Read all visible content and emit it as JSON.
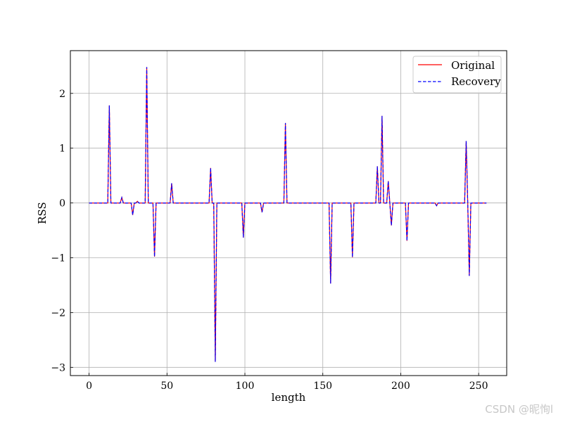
{
  "watermark": "CSDN @昵恂l",
  "chart_data": {
    "type": "line",
    "title": "",
    "xlabel": "length",
    "ylabel": "RSS",
    "xlim": [
      -12,
      268
    ],
    "ylim": [
      -3.15,
      2.78
    ],
    "x_ticks": [
      0,
      50,
      100,
      150,
      200,
      250
    ],
    "x_tick_labels": [
      "0",
      "50",
      "100",
      "150",
      "200",
      "250"
    ],
    "y_ticks": [
      -3,
      -2,
      -1,
      0,
      1,
      2
    ],
    "y_tick_labels": [
      "−3",
      "−2",
      "−1",
      "0",
      "1",
      "2"
    ],
    "grid": true,
    "legend": "top-right",
    "x_range": [
      0,
      255
    ],
    "baseline": 0,
    "spikes": [
      [
        13,
        1.78
      ],
      [
        21,
        0.1
      ],
      [
        28,
        -0.22
      ],
      [
        31,
        0.03
      ],
      [
        37,
        2.48
      ],
      [
        42,
        -0.98
      ],
      [
        53,
        0.36
      ],
      [
        78,
        0.64
      ],
      [
        81,
        -2.9
      ],
      [
        99,
        -0.63
      ],
      [
        111,
        -0.17
      ],
      [
        126,
        1.46
      ],
      [
        155,
        -1.47
      ],
      [
        169,
        -0.99
      ],
      [
        185,
        0.67
      ],
      [
        188,
        1.59
      ],
      [
        192,
        0.4
      ],
      [
        194,
        -0.41
      ],
      [
        204,
        -0.69
      ],
      [
        223,
        -0.05
      ],
      [
        242,
        1.13
      ],
      [
        244,
        -1.33
      ]
    ],
    "series": [
      {
        "name": "Original",
        "color": "#ff0000",
        "style": "solid"
      },
      {
        "name": "Recovery",
        "color": "#0000ff",
        "style": "dashed"
      }
    ]
  }
}
